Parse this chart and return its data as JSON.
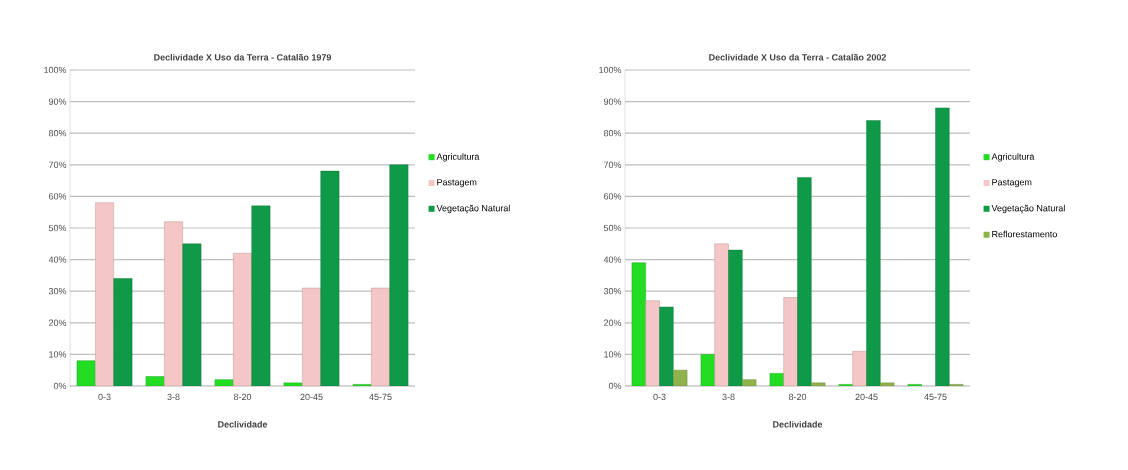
{
  "chart_data": [
    {
      "type": "bar",
      "title": "Declividade X Uso da Terra - Catalão 1979",
      "xlabel": "Declividade",
      "categories": [
        "0-3",
        "3-8",
        "8-20",
        "20-45",
        "45-75"
      ],
      "series": [
        {
          "name": "Agricultura",
          "color": "#22dd22",
          "values": [
            8,
            3,
            2,
            1,
            0.5
          ]
        },
        {
          "name": "Pastagem",
          "color": "#f4c6c6",
          "values": [
            58,
            52,
            42,
            31,
            31
          ]
        },
        {
          "name": "Vegetação Natural",
          "color": "#0f9a48",
          "values": [
            34,
            45,
            57,
            68,
            70
          ]
        }
      ],
      "ylim": [
        0,
        100
      ],
      "yticks": [
        {
          "value": 0,
          "label": "0%"
        },
        {
          "value": 10,
          "label": "10%"
        },
        {
          "value": 20,
          "label": "20%"
        },
        {
          "value": 30,
          "label": "30%"
        },
        {
          "value": 40,
          "label": "40%"
        },
        {
          "value": 50,
          "label": "50%"
        },
        {
          "value": 60,
          "label": "60%"
        },
        {
          "value": 70,
          "label": "70%"
        },
        {
          "value": 80,
          "label": "80%"
        },
        {
          "value": 90,
          "label": "90%"
        },
        {
          "value": 100,
          "label": "100%"
        }
      ],
      "grid": "y",
      "legend": "right"
    },
    {
      "type": "bar",
      "title": "Declividade X Uso da Terra - Catalão 2002",
      "xlabel": "Declividade",
      "categories": [
        "0-3",
        "3-8",
        "8-20",
        "20-45",
        "45-75"
      ],
      "series": [
        {
          "name": "Agricultura",
          "color": "#22dd22",
          "values": [
            39,
            10,
            4,
            0.5,
            0.5
          ]
        },
        {
          "name": "Pastagem",
          "color": "#f4c6c6",
          "values": [
            27,
            45,
            28,
            11,
            null
          ]
        },
        {
          "name": "Vegetação Natural",
          "color": "#0f9a48",
          "values": [
            25,
            43,
            66,
            84,
            88
          ]
        },
        {
          "name": "Reflorestamento",
          "color": "#8fb34a",
          "values": [
            5,
            2,
            1,
            1,
            0.5
          ]
        }
      ],
      "ylim": [
        0,
        100
      ],
      "yticks": [
        {
          "value": 0,
          "label": "0%"
        },
        {
          "value": 10,
          "label": "10%"
        },
        {
          "value": 20,
          "label": "20%"
        },
        {
          "value": 30,
          "label": "30%"
        },
        {
          "value": 40,
          "label": "40%"
        },
        {
          "value": 50,
          "label": "50%"
        },
        {
          "value": 60,
          "label": "60%"
        },
        {
          "value": 70,
          "label": "70%"
        },
        {
          "value": 80,
          "label": "80%"
        },
        {
          "value": 90,
          "label": "90%"
        },
        {
          "value": 100,
          "label": "100%"
        }
      ],
      "grid": "y",
      "legend": "right"
    }
  ]
}
